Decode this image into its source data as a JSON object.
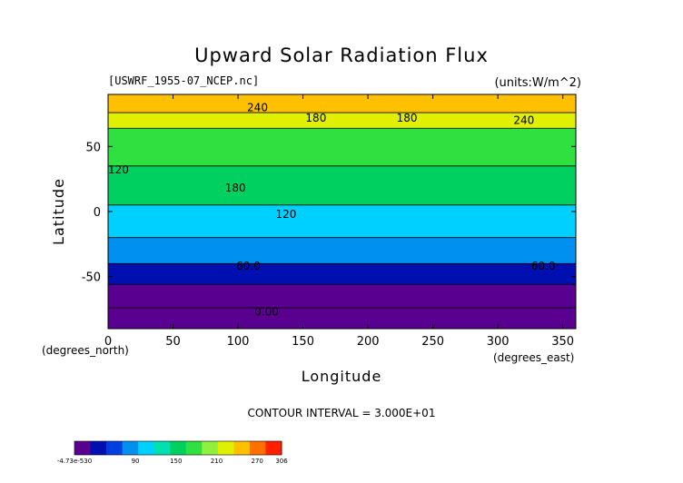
{
  "chart_data": {
    "type": "heatmap",
    "title": "Upward Solar Radiation Flux",
    "source_label": "[USWRF_1955-07_NCEP.nc]",
    "units_label": "(units:W/m^2)",
    "xlabel": "Longitude",
    "ylabel": "Latitude",
    "x_unit_label": "(degrees_east)",
    "y_unit_label": "(degrees_north)",
    "xlim": [
      0,
      360
    ],
    "ylim": [
      -90,
      90
    ],
    "x_ticks": [
      0,
      50,
      100,
      150,
      200,
      250,
      300,
      350
    ],
    "y_ticks": [
      -50,
      0,
      50
    ],
    "contour_interval_text": "CONTOUR INTERVAL = 3.000E+01",
    "contour_labels": [
      {
        "text": "240",
        "lon": 115,
        "lat": 80
      },
      {
        "text": "180",
        "lon": 160,
        "lat": 72
      },
      {
        "text": "180",
        "lon": 230,
        "lat": 72
      },
      {
        "text": "240",
        "lon": 320,
        "lat": 70
      },
      {
        "text": "120",
        "lon": 8,
        "lat": 32
      },
      {
        "text": "180",
        "lon": 98,
        "lat": 18
      },
      {
        "text": "120",
        "lon": 137,
        "lat": -2
      },
      {
        "text": "60.0",
        "lon": 108,
        "lat": -42
      },
      {
        "text": "60.0",
        "lon": 335,
        "lat": -42
      },
      {
        "text": "0.00",
        "lon": 122,
        "lat": -77
      }
    ],
    "colorbar": {
      "tick_labels": [
        "-4.73e-530",
        "90",
        "150",
        "210",
        "270",
        "306"
      ],
      "tick_values": [
        0,
        90,
        150,
        210,
        270,
        306
      ],
      "min": 0,
      "max": 306,
      "colors": [
        "#5a0090",
        "#0010b0",
        "#0040e0",
        "#0090f0",
        "#00d0ff",
        "#00e0b0",
        "#00d060",
        "#30e040",
        "#90f040",
        "#e0f000",
        "#ffc000",
        "#ff7000",
        "#ff2000"
      ]
    },
    "bands": [
      {
        "lat_from": -90,
        "lat_to": -74,
        "value": 0
      },
      {
        "lat_from": -74,
        "lat_to": -56,
        "value": 15
      },
      {
        "lat_from": -56,
        "lat_to": -40,
        "value": 45
      },
      {
        "lat_from": -40,
        "lat_to": -20,
        "value": 90
      },
      {
        "lat_from": -20,
        "lat_to": 5,
        "value": 110
      },
      {
        "lat_from": 5,
        "lat_to": 35,
        "value": 145
      },
      {
        "lat_from": 35,
        "lat_to": 64,
        "value": 165
      },
      {
        "lat_from": 64,
        "lat_to": 76,
        "value": 225
      },
      {
        "lat_from": 76,
        "lat_to": 90,
        "value": 255
      }
    ]
  }
}
